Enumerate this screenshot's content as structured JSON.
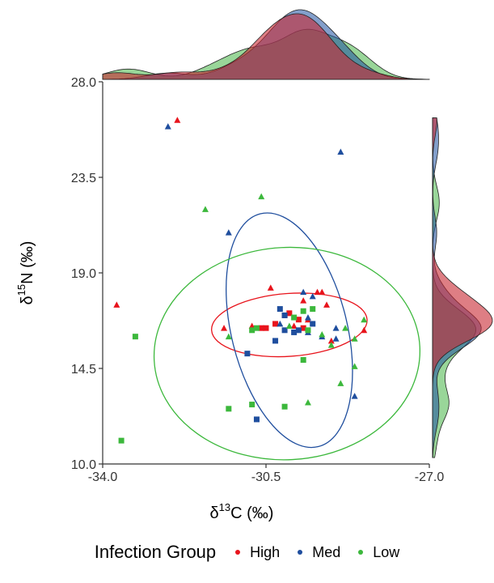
{
  "chart_data": {
    "type": "scatter",
    "title": "",
    "xlabel": {
      "prefix": "δ",
      "sup": "13",
      "rest": "C (‰)"
    },
    "ylabel": {
      "prefix": "δ",
      "sup": "15",
      "rest": "N (‰)"
    },
    "xlim": [
      -34.0,
      -27.0
    ],
    "ylim": [
      10.0,
      28.0
    ],
    "x_ticks": [
      "-34.0",
      "-30.5",
      "-27.0"
    ],
    "y_ticks": [
      "10.0",
      "14.5",
      "19.0",
      "23.5",
      "28.0"
    ],
    "legend_title": "Infection Group",
    "legend_position": "bottom",
    "colors": {
      "High": "#e8141c",
      "Med": "#1f4e9e",
      "Low": "#3cb83c"
    },
    "series": [
      {
        "name": "High",
        "triangles": [
          [
            -33.7,
            17.5
          ],
          [
            -32.4,
            26.2
          ],
          [
            -30.4,
            18.3
          ],
          [
            -29.7,
            17.7
          ],
          [
            -29.4,
            18.1
          ],
          [
            -28.4,
            16.3
          ],
          [
            -29.2,
            17.5
          ],
          [
            -30.8,
            16.5
          ],
          [
            -29.9,
            16.5
          ],
          [
            -29.6,
            16.8
          ],
          [
            -29.1,
            15.8
          ],
          [
            -31.4,
            16.4
          ],
          [
            -29.3,
            18.1
          ]
        ],
        "squares": [
          [
            -30.6,
            16.4
          ],
          [
            -30.3,
            16.6
          ],
          [
            -30.1,
            17.0
          ],
          [
            -30.0,
            17.1
          ],
          [
            -29.8,
            16.8
          ],
          [
            -29.7,
            16.4
          ],
          [
            -30.5,
            16.4
          ]
        ]
      },
      {
        "name": "Med",
        "triangles": [
          [
            -32.6,
            25.9
          ],
          [
            -28.9,
            24.7
          ],
          [
            -31.3,
            20.9
          ],
          [
            -29.7,
            18.1
          ],
          [
            -29.5,
            17.9
          ],
          [
            -29.6,
            16.9
          ],
          [
            -28.6,
            13.2
          ],
          [
            -29.0,
            15.9
          ],
          [
            -29.3,
            16.0
          ],
          [
            -30.2,
            16.6
          ],
          [
            -29.6,
            16.2
          ],
          [
            -29.0,
            16.4
          ]
        ],
        "squares": [
          [
            -30.9,
            15.2
          ],
          [
            -30.7,
            12.1
          ],
          [
            -30.3,
            15.8
          ],
          [
            -30.1,
            16.3
          ],
          [
            -29.9,
            16.2
          ],
          [
            -30.2,
            17.3
          ],
          [
            -30.1,
            17.0
          ],
          [
            -29.8,
            16.3
          ],
          [
            -29.5,
            16.6
          ]
        ]
      },
      {
        "name": "Low",
        "triangles": [
          [
            -31.8,
            22.0
          ],
          [
            -30.6,
            22.6
          ],
          [
            -31.3,
            16.0
          ],
          [
            -28.8,
            16.4
          ],
          [
            -28.6,
            15.9
          ],
          [
            -28.4,
            16.8
          ],
          [
            -28.6,
            14.6
          ],
          [
            -28.9,
            13.8
          ],
          [
            -29.6,
            12.9
          ],
          [
            -29.3,
            16.1
          ],
          [
            -29.1,
            15.6
          ],
          [
            -30.0,
            16.5
          ]
        ],
        "squares": [
          [
            -33.3,
            16.0
          ],
          [
            -33.6,
            11.1
          ],
          [
            -31.3,
            12.6
          ],
          [
            -30.8,
            12.8
          ],
          [
            -30.1,
            12.7
          ],
          [
            -29.7,
            14.9
          ],
          [
            -29.6,
            16.3
          ],
          [
            -29.5,
            17.3
          ],
          [
            -30.8,
            16.3
          ],
          [
            -30.7,
            16.4
          ],
          [
            -29.7,
            17.2
          ],
          [
            -29.9,
            16.9
          ]
        ]
      }
    ],
    "ellipses": [
      {
        "name": "High",
        "center": [
          -30.0,
          16.55
        ],
        "semi_axes": [
          1.67,
          1.48
        ],
        "rotation_deg": 176
      },
      {
        "name": "Med",
        "center": [
          -30.0,
          16.3
        ],
        "semi_axes": [
          1.24,
          5.65
        ],
        "rotation_deg": 166
      },
      {
        "name": "Low",
        "center": [
          -30.05,
          15.2
        ],
        "semi_axes": [
          2.85,
          5.0
        ],
        "rotation_deg": 177
      }
    ],
    "marginal_x": "density curves of δ13C per group",
    "marginal_y": "density curves of δ15N per group"
  }
}
